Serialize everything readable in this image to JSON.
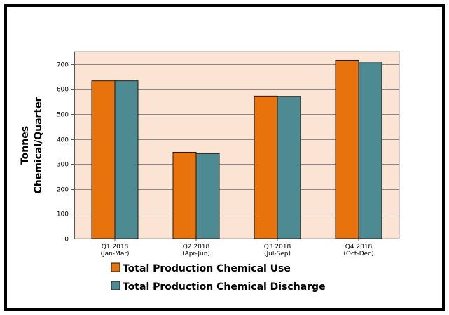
{
  "chart_data": {
    "type": "bar",
    "categories": [
      [
        "Q1 2018",
        "(Jan-Mar)"
      ],
      [
        "Q2 2018",
        "(Apr-Jun)"
      ],
      [
        "Q3 2018",
        "(Jul-Sep)"
      ],
      [
        "Q4 2018",
        "(Oct-Dec)"
      ]
    ],
    "series": [
      {
        "name": "Total Production Chemical Use",
        "values": [
          633,
          347,
          572,
          715
        ]
      },
      {
        "name": "Total Production Chemical Discharge",
        "values": [
          633,
          342,
          571,
          709
        ]
      }
    ],
    "ylabel": [
      "Tonnes",
      "Chemical/Quarter"
    ],
    "xlabel": "",
    "ylim": [
      0,
      750
    ],
    "yticks": [
      0,
      100,
      200,
      300,
      400,
      500,
      600,
      700
    ],
    "grid": true,
    "legend_position": "bottom",
    "colors": {
      "series": [
        "#E8720C",
        "#4E8A91"
      ],
      "plot_background": "#FCE4D4"
    }
  }
}
